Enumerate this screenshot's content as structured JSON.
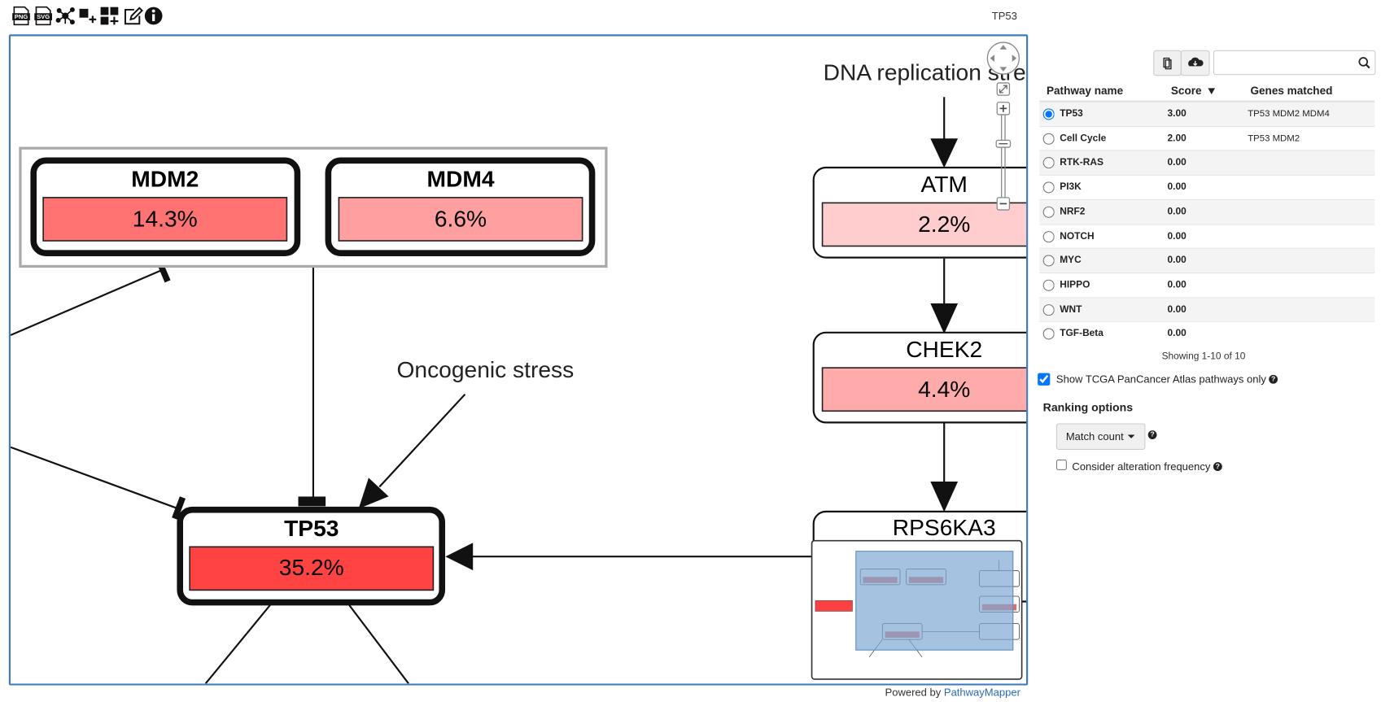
{
  "toolbar": {
    "png_icon": "PNG",
    "svg_icon": "SVG"
  },
  "header": {
    "title": "TP53"
  },
  "pathway": {
    "nodes": [
      {
        "label": "MDM2",
        "value": "14.3%"
      },
      {
        "label": "MDM4",
        "value": "6.6%"
      },
      {
        "label": "TP53",
        "value": "35.2%"
      },
      {
        "label": "ATM",
        "value": "2.2%"
      },
      {
        "label": "CHEK2",
        "value": "4.4%"
      },
      {
        "label": "RPS6KA3"
      }
    ],
    "annotations": [
      "DNA replication stress",
      "Oncogenic stress"
    ]
  },
  "footer": {
    "prefix": "Powered by",
    "link": "PathwayMapper"
  },
  "panel": {
    "columns": [
      "Pathway name",
      "Score",
      "Genes matched"
    ],
    "rows": [
      {
        "name": "TP53",
        "score": "3.00",
        "genes": "TP53 MDM2 MDM4"
      },
      {
        "name": "Cell Cycle",
        "score": "2.00",
        "genes": "TP53 MDM2"
      },
      {
        "name": "RTK-RAS",
        "score": "0.00"
      },
      {
        "name": "PI3K",
        "score": "0.00"
      },
      {
        "name": "NRF2",
        "score": "0.00"
      },
      {
        "name": "NOTCH",
        "score": "0.00"
      },
      {
        "name": "MYC",
        "score": "0.00"
      },
      {
        "name": "HIPPO",
        "score": "0.00"
      },
      {
        "name": "WNT",
        "score": "0.00"
      },
      {
        "name": "TGF-Beta",
        "score": "0.00"
      }
    ],
    "summary": "Showing 1-10 of 10",
    "filter_label": "Show TCGA PanCancer Atlas pathways only",
    "ranking_title": "Ranking options",
    "ranking_button": "Match count",
    "alteration_label": "Consider alteration frequency"
  }
}
